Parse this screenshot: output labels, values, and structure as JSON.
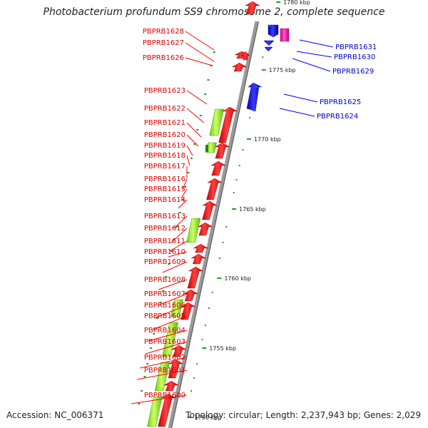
{
  "title": "Photobacterium profundum SS9 chromosome 2, complete sequence",
  "accession_text": "Accession: NC_006371",
  "topology_text": "Topology: circular; Length: 2,237,943 bp; Genes: 2,029",
  "colors": {
    "forward_gene": "#ff0000",
    "reverse_gene": "#0000ff",
    "rna_gene": "#ff00aa",
    "other_feature": "#99ff33",
    "tick_green": "#2a9a2a",
    "backbone": "#9a9a9a"
  },
  "scale_labels": [
    {
      "label": "1780 kbp",
      "kbp": 1780
    },
    {
      "label": "1775 kbp",
      "kbp": 1775
    },
    {
      "label": "1770 kbp",
      "kbp": 1770
    },
    {
      "label": "1765 kbp",
      "kbp": 1765
    },
    {
      "label": "1760 kbp",
      "kbp": 1760
    },
    {
      "label": "1755 kbp",
      "kbp": 1755
    },
    {
      "label": "1750 kbp",
      "kbp": 1750
    }
  ],
  "left_genes": [
    "PBPRB1628",
    "PBPRB1627",
    "PBPRB1626",
    "PBPRB1623",
    "PBPRB1622",
    "PBPRB1621",
    "PBPRB1620",
    "PBPRB1619",
    "PBPRB1618",
    "PBPRB1617",
    "PBPRB1616",
    "PBPRB1615",
    "PBPRB1614",
    "PBPRB1613",
    "PBPRB1612",
    "PBPRB1611",
    "PBPRB1610",
    "PBPRB1609",
    "PBPRB1608",
    "PBPRB1607",
    "PBPRB1606",
    "PBPRB1605",
    "PBPRB1604",
    "PBPRB1603",
    "PBPRB1602",
    "PBPRB1601",
    "PBPRB1600"
  ],
  "right_genes": [
    "PBPRB1631",
    "PBPRB1630",
    "PBPRB1629",
    "PBPRB1625",
    "PBPRB1624"
  ]
}
